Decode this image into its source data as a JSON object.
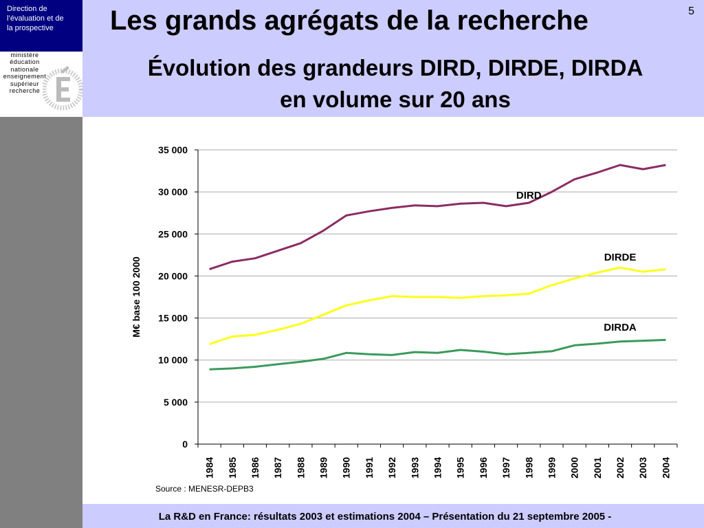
{
  "header": {
    "department_lines": [
      "Direction de",
      "l’évaluation  et de",
      "la prospective"
    ],
    "ministry_lines": [
      "ministère",
      "éducation",
      "nationale",
      "enseignement",
      "supérieur",
      "recherche"
    ],
    "title": "Les grands agrégats de la recherche",
    "subtitle_lines": [
      "Évolution des grandeurs DIRD, DIRDE, DIRDA",
      "en volume sur 20 ans"
    ],
    "page_number": "5"
  },
  "source_note": "Source : MENESR-DEPB3",
  "footer": {
    "text": "La R&D en France: résultats 2003 et estimations 2004 – Présentation du 21 septembre 2005 -"
  },
  "colors": {
    "header_band": "#ccccff",
    "dept_box": "#000080",
    "left_band": "#808080",
    "dird": "#8b2c62",
    "dirde": "#ffff1a",
    "dirda": "#3a9a5c"
  },
  "chart_data": {
    "type": "line",
    "ylabel": "M€ base 100 2000",
    "xlabel": "",
    "ylim": [
      0,
      35000
    ],
    "yticks": [
      0,
      5000,
      10000,
      15000,
      20000,
      25000,
      30000,
      35000
    ],
    "ytick_labels": [
      "0",
      "5 000",
      "10 000",
      "15 000",
      "20 000",
      "25 000",
      "30 000",
      "35 000"
    ],
    "grid": true,
    "categories": [
      "1984",
      "1985",
      "1986",
      "1987",
      "1988",
      "1989",
      "1990",
      "1991",
      "1992",
      "1993",
      "1994",
      "1995",
      "1996",
      "1997",
      "1998",
      "1999",
      "2000",
      "2001",
      "2002",
      "2003",
      "2004"
    ],
    "series": [
      {
        "name": "DIRD",
        "color": "#8b2c62",
        "values": [
          20800,
          21700,
          22100,
          23000,
          23900,
          25400,
          27200,
          27700,
          28100,
          28400,
          28300,
          28600,
          28700,
          28300,
          28700,
          30000,
          31500,
          32300,
          33200,
          32700,
          33200
        ]
      },
      {
        "name": "DIRDE",
        "color": "#ffff1a",
        "values": [
          11900,
          12800,
          13000,
          13600,
          14300,
          15400,
          16500,
          17100,
          17600,
          17500,
          17500,
          17400,
          17600,
          17700,
          17900,
          18900,
          19700,
          20400,
          21000,
          20500,
          20800
        ]
      },
      {
        "name": "DIRDA",
        "color": "#3a9a5c",
        "values": [
          8900,
          9000,
          9200,
          9500,
          9800,
          10150,
          10850,
          10700,
          10600,
          10950,
          10850,
          11200,
          11000,
          10700,
          10850,
          11050,
          11750,
          11950,
          12200,
          12300,
          12400
        ]
      }
    ]
  }
}
